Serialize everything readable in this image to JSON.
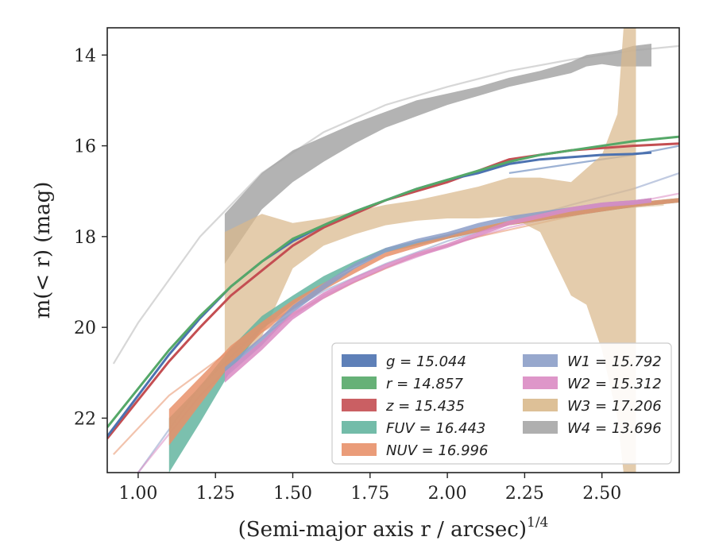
{
  "chart_data": {
    "type": "line",
    "xlabel": "(Semi-major axis r / arcsec)",
    "xlabel_sup": "1/4",
    "ylabel": "m(< r) (mag)",
    "xlim": [
      0.9,
      2.75
    ],
    "ylim": [
      23.2,
      13.4
    ],
    "y_inverted": true,
    "grid": false,
    "legend_position": "lower-right",
    "x_ticks": [
      {
        "v": 1.0,
        "label": "1.00"
      },
      {
        "v": 1.25,
        "label": "1.25"
      },
      {
        "v": 1.5,
        "label": "1.50"
      },
      {
        "v": 1.75,
        "label": "1.75"
      },
      {
        "v": 2.0,
        "label": "2.00"
      },
      {
        "v": 2.25,
        "label": "2.25"
      },
      {
        "v": 2.5,
        "label": "2.50"
      }
    ],
    "y_ticks": [
      {
        "v": 14,
        "label": "14"
      },
      {
        "v": 16,
        "label": "16"
      },
      {
        "v": 18,
        "label": "18"
      },
      {
        "v": 20,
        "label": "20"
      },
      {
        "v": 22,
        "label": "22"
      }
    ],
    "colors": {
      "g": "#4c72b0",
      "r": "#55a868",
      "z": "#c44e52",
      "FUV": "#64b5a0",
      "NUV": "#e8916a",
      "W1": "#8c9ec8",
      "W2": "#da8bc3",
      "W3": "#d9b98c",
      "W4": "#a6a6a6"
    },
    "legend": [
      {
        "key": "g",
        "label": "g = 15.044"
      },
      {
        "key": "r",
        "label": "r = 14.857"
      },
      {
        "key": "z",
        "label": "z = 15.435"
      },
      {
        "key": "FUV",
        "label": "FUV = 16.443"
      },
      {
        "key": "NUV",
        "label": "NUV = 16.996"
      },
      {
        "key": "W1",
        "label": "W1 = 15.792"
      },
      {
        "key": "W2",
        "label": "W2 = 15.312"
      },
      {
        "key": "W3",
        "label": "W3 = 17.206"
      },
      {
        "key": "W4",
        "label": "W4 = 13.696"
      }
    ],
    "model_curves": [
      {
        "key": "W4",
        "x": [
          0.92,
          1.0,
          1.2,
          1.4,
          1.6,
          1.8,
          2.0,
          2.2,
          2.4,
          2.6,
          2.75
        ],
        "y": [
          20.8,
          19.9,
          18.0,
          16.6,
          15.7,
          15.1,
          14.7,
          14.35,
          14.1,
          13.9,
          13.8
        ]
      },
      {
        "key": "W1",
        "x": [
          1.0,
          1.2,
          1.4,
          1.6,
          1.8,
          2.0,
          2.2,
          2.4,
          2.6,
          2.75
        ],
        "y": [
          23.2,
          21.3,
          20.0,
          19.2,
          18.6,
          18.1,
          17.7,
          17.3,
          16.95,
          16.6
        ]
      },
      {
        "key": "W2",
        "x": [
          1.0,
          1.2,
          1.4,
          1.6,
          1.8,
          2.0,
          2.2,
          2.4,
          2.6,
          2.75
        ],
        "y": [
          23.2,
          21.5,
          20.2,
          19.3,
          18.7,
          18.2,
          17.8,
          17.5,
          17.25,
          17.05
        ]
      },
      {
        "key": "NUV",
        "x": [
          0.92,
          1.1,
          1.3,
          1.5,
          1.7,
          1.9,
          2.1,
          2.3,
          2.5,
          2.75
        ],
        "y": [
          22.8,
          21.5,
          20.5,
          19.7,
          19.0,
          18.4,
          18.0,
          17.7,
          17.4,
          17.2
        ]
      },
      {
        "key": "g",
        "x": [
          2.2,
          2.4,
          2.6,
          2.75
        ],
        "y": [
          16.6,
          16.4,
          16.2,
          16.0
        ]
      },
      {
        "key": "W3",
        "x": [
          2.3,
          2.5,
          2.7
        ],
        "y": [
          17.55,
          17.4,
          17.3
        ]
      }
    ],
    "series": [
      {
        "key": "g",
        "x": [
          0.9,
          1.0,
          1.1,
          1.2,
          1.3,
          1.4,
          1.5,
          1.6,
          1.7,
          1.8,
          1.9,
          2.0,
          2.1,
          2.2,
          2.3,
          2.4,
          2.5,
          2.6,
          2.66
        ],
        "y": [
          22.4,
          21.5,
          20.6,
          19.8,
          19.1,
          18.55,
          18.1,
          17.75,
          17.45,
          17.2,
          16.95,
          16.75,
          16.6,
          16.4,
          16.3,
          16.25,
          16.2,
          16.18,
          16.15
        ]
      },
      {
        "key": "r",
        "x": [
          0.9,
          1.0,
          1.1,
          1.2,
          1.3,
          1.4,
          1.5,
          1.6,
          1.7,
          1.8,
          1.9,
          2.0,
          2.1,
          2.2,
          2.3,
          2.4,
          2.5,
          2.6,
          2.75
        ],
        "y": [
          22.2,
          21.35,
          20.5,
          19.75,
          19.1,
          18.55,
          18.05,
          17.75,
          17.45,
          17.2,
          16.95,
          16.75,
          16.55,
          16.35,
          16.2,
          16.1,
          16.0,
          15.9,
          15.8
        ]
      },
      {
        "key": "z",
        "x": [
          0.9,
          1.0,
          1.1,
          1.2,
          1.3,
          1.4,
          1.5,
          1.6,
          1.7,
          1.8,
          1.9,
          2.0,
          2.1,
          2.2,
          2.3,
          2.4,
          2.5,
          2.6,
          2.75
        ],
        "y": [
          22.45,
          21.6,
          20.75,
          20.0,
          19.3,
          18.75,
          18.2,
          17.8,
          17.5,
          17.2,
          17.0,
          16.8,
          16.55,
          16.3,
          16.2,
          16.1,
          16.05,
          16.0,
          15.95
        ]
      },
      {
        "key": "FUV",
        "x": [
          1.1,
          1.2,
          1.3,
          1.4,
          1.5,
          1.6,
          1.7,
          1.8,
          1.9,
          2.0,
          2.1,
          2.2,
          2.3,
          2.4,
          2.5,
          2.6,
          2.75
        ],
        "y": [
          22.6,
          21.7,
          20.7,
          19.9,
          19.4,
          18.95,
          18.6,
          18.3,
          18.15,
          18.0,
          17.85,
          17.7,
          17.6,
          17.5,
          17.4,
          17.3,
          17.2
        ],
        "err": [
          0.6,
          0.4,
          0.25,
          0.15,
          0.1,
          0.08,
          0.06,
          0.05,
          0.05,
          0.05,
          0.05,
          0.05,
          0.05,
          0.05,
          0.05,
          0.05,
          0.05
        ]
      },
      {
        "key": "NUV",
        "x": [
          1.1,
          1.2,
          1.3,
          1.4,
          1.5,
          1.6,
          1.7,
          1.8,
          1.9,
          2.0,
          2.1,
          2.2,
          2.3,
          2.4,
          2.5,
          2.6,
          2.75
        ],
        "y": [
          22.2,
          21.4,
          20.6,
          20.0,
          19.5,
          19.1,
          18.75,
          18.4,
          18.2,
          18.0,
          17.85,
          17.7,
          17.6,
          17.5,
          17.4,
          17.3,
          17.2
        ],
        "err": [
          0.4,
          0.3,
          0.2,
          0.12,
          0.1,
          0.08,
          0.06,
          0.05,
          0.05,
          0.05,
          0.05,
          0.05,
          0.05,
          0.05,
          0.05,
          0.05,
          0.05
        ]
      },
      {
        "key": "W1",
        "x": [
          1.28,
          1.4,
          1.5,
          1.6,
          1.7,
          1.8,
          1.9,
          2.0,
          2.1,
          2.2,
          2.3,
          2.4,
          2.5,
          2.6,
          2.66
        ],
        "y": [
          21.0,
          20.3,
          19.6,
          19.1,
          18.65,
          18.3,
          18.1,
          17.95,
          17.75,
          17.6,
          17.5,
          17.4,
          17.3,
          17.25,
          17.2
        ],
        "err": [
          0.12,
          0.1,
          0.08,
          0.07,
          0.06,
          0.05,
          0.05,
          0.05,
          0.05,
          0.05,
          0.05,
          0.05,
          0.05,
          0.05,
          0.05
        ]
      },
      {
        "key": "W2",
        "x": [
          1.28,
          1.4,
          1.5,
          1.6,
          1.7,
          1.8,
          1.9,
          2.0,
          2.1,
          2.2,
          2.3,
          2.4,
          2.5,
          2.6,
          2.66
        ],
        "y": [
          21.1,
          20.4,
          19.75,
          19.3,
          18.95,
          18.65,
          18.4,
          18.2,
          17.95,
          17.7,
          17.55,
          17.4,
          17.3,
          17.25,
          17.2
        ],
        "err": [
          0.12,
          0.1,
          0.08,
          0.07,
          0.06,
          0.05,
          0.05,
          0.05,
          0.05,
          0.05,
          0.05,
          0.05,
          0.05,
          0.05,
          0.05
        ]
      },
      {
        "key": "W3",
        "band_x": [
          1.28,
          1.4,
          1.5,
          1.6,
          1.7,
          1.8,
          1.9,
          2.0,
          2.1,
          2.2,
          2.3,
          2.4,
          2.45,
          2.5,
          2.55,
          2.57,
          2.58,
          2.6,
          2.61
        ],
        "band_upper": [
          17.9,
          17.5,
          17.7,
          17.6,
          17.45,
          17.3,
          17.2,
          17.05,
          16.9,
          16.7,
          16.7,
          16.8,
          16.5,
          16.2,
          15.3,
          13.4,
          13.4,
          13.4,
          13.4
        ],
        "band_lower": [
          20.9,
          20.2,
          18.7,
          18.2,
          17.95,
          17.75,
          17.65,
          17.6,
          17.6,
          17.55,
          17.9,
          19.3,
          19.5,
          20.5,
          22.0,
          23.2,
          23.2,
          23.2,
          23.2
        ]
      },
      {
        "key": "W4",
        "band_x": [
          1.28,
          1.4,
          1.5,
          1.6,
          1.7,
          1.8,
          1.9,
          2.0,
          2.1,
          2.2,
          2.3,
          2.4,
          2.45,
          2.5,
          2.55,
          2.6,
          2.66
        ],
        "band_upper": [
          17.5,
          16.6,
          16.1,
          15.8,
          15.5,
          15.25,
          15.0,
          14.85,
          14.7,
          14.5,
          14.35,
          14.15,
          14.0,
          13.95,
          13.9,
          13.8,
          13.75
        ],
        "band_lower": [
          18.6,
          17.4,
          16.8,
          16.35,
          15.95,
          15.6,
          15.35,
          15.1,
          14.9,
          14.7,
          14.55,
          14.4,
          14.25,
          14.2,
          14.25,
          14.25,
          14.25
        ]
      }
    ]
  }
}
